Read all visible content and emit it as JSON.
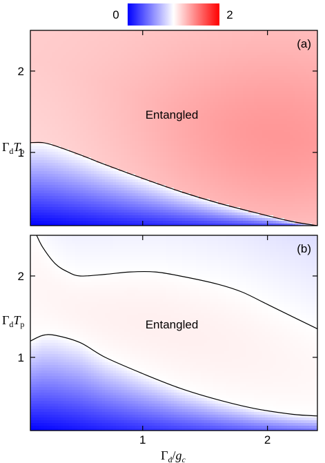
{
  "colorbar": {
    "min_label": "0",
    "max_label": "2",
    "colors": [
      "#0000ff",
      "#ffffff",
      "#ff0000"
    ]
  },
  "chart_data": [
    {
      "type": "heatmap",
      "panel_label": "(a)",
      "region_label": "Entangled",
      "xlabel": "",
      "ylabel": "Γ_d T_p",
      "xlim": [
        0.1,
        2.4
      ],
      "ylim": [
        0.1,
        2.5
      ],
      "xticks": [
        1,
        2
      ],
      "yticks": [
        1,
        2
      ],
      "zlim": [
        0,
        2
      ],
      "boundary_contour": {
        "x": [
          0.1,
          0.2,
          0.3,
          0.5,
          0.7,
          1.0,
          1.3,
          1.6,
          1.9,
          2.2,
          2.4
        ],
        "y": [
          1.12,
          1.12,
          1.08,
          0.97,
          0.85,
          0.68,
          0.52,
          0.38,
          0.26,
          0.15,
          0.1
        ]
      }
    },
    {
      "type": "heatmap",
      "panel_label": "(b)",
      "region_label": "Entangled",
      "xlabel": "Γ_d / g_c",
      "ylabel": "Γ_d T_p",
      "xlim": [
        0.1,
        2.4
      ],
      "ylim": [
        0.1,
        2.5
      ],
      "xticks": [
        1,
        2
      ],
      "yticks": [
        1,
        2
      ],
      "zlim": [
        0,
        2
      ],
      "upper_contour": {
        "x": [
          0.15,
          0.2,
          0.3,
          0.4,
          0.5,
          0.7,
          0.9,
          1.1,
          1.3,
          1.6,
          1.8,
          2.0,
          2.2,
          2.4
        ],
        "y": [
          2.5,
          2.35,
          2.15,
          2.05,
          2.0,
          2.02,
          2.05,
          2.05,
          2.0,
          1.9,
          1.8,
          1.65,
          1.5,
          1.35
        ]
      },
      "lower_contour": {
        "x": [
          0.1,
          0.2,
          0.3,
          0.5,
          0.7,
          1.0,
          1.3,
          1.6,
          1.9,
          2.2,
          2.4
        ],
        "y": [
          1.2,
          1.27,
          1.27,
          1.18,
          1.0,
          0.8,
          0.62,
          0.48,
          0.37,
          0.3,
          0.28
        ]
      }
    }
  ]
}
